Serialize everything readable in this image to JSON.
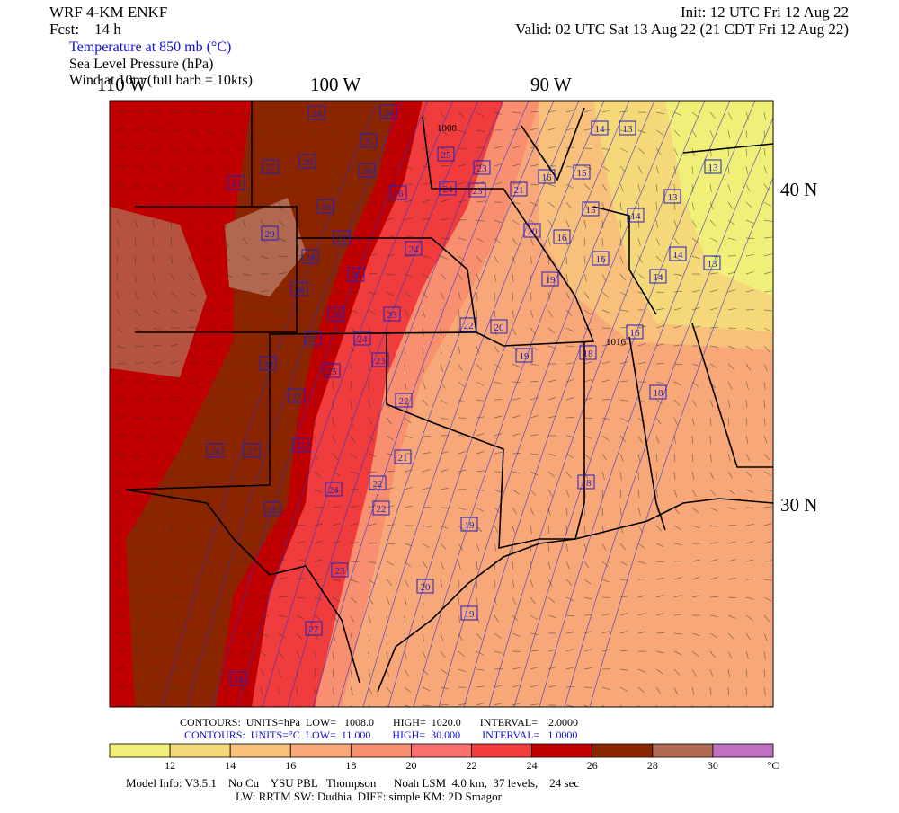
{
  "header": {
    "model": "WRF 4-KM ENKF",
    "forecast": "Fcst:    14 h",
    "init": "Init: 12 UTC Fri 12 Aug 22",
    "valid": "Valid: 02 UTC Sat 13 Aug 22 (21 CDT Fri 12 Aug 22)",
    "fields": [
      "Temperature at 850 mb (°C)",
      "Sea Level Pressure (hPa)",
      "Wind at 10m (full barb = 10kts)"
    ]
  },
  "map": {
    "lon_labels": [
      "110 W",
      "100 W",
      "90 W"
    ],
    "lat_labels": [
      "40 N",
      "30 N"
    ],
    "temperature_labels": [
      "24",
      "24",
      "25",
      "26",
      "26",
      "27",
      "27",
      "28",
      "26",
      "29",
      "28",
      "27",
      "26",
      "28",
      "26",
      "27",
      "24",
      "24",
      "23",
      "23",
      "29",
      "25",
      "22",
      "27",
      "28",
      "27",
      "25",
      "21",
      "22",
      "22",
      "26",
      "24",
      "23",
      "22",
      "26",
      "19",
      "20",
      "19",
      "25",
      "23",
      "24",
      "23",
      "21",
      "16",
      "15",
      "15",
      "14",
      "13",
      "13",
      "14",
      "13",
      "20",
      "16",
      "19",
      "16",
      "14",
      "14",
      "13",
      "22",
      "20",
      "19",
      "18",
      "16",
      "18",
      "18"
    ],
    "pressure_labels": [
      "1008",
      "1016"
    ]
  },
  "contours": [
    "CONTOURS:  UNITS=hPa  LOW=   1008.0       HIGH=  1020.0       INTERVAL=    2.0000",
    "CONTOURS:  UNITS=°C  LOW=  11.000        HIGH=  30.000        INTERVAL=   1.0000"
  ],
  "colorbar": {
    "ticks": [
      12,
      14,
      16,
      18,
      20,
      22,
      24,
      26,
      28,
      30
    ],
    "unit": "°C",
    "colors": [
      "#f0f078",
      "#f5d878",
      "#f8c07a",
      "#f8a878",
      "#f89070",
      "#f87070",
      "#f03c3c",
      "#c00000",
      "#8b2500",
      "#b06850",
      "#c070c0"
    ]
  },
  "footer": [
    "Model Info: V3.5.1    No Cu    YSU PBL   Thompson      Noah LSM  4.0 km,  37 levels,    24 sec",
    "LW: RRTM SW: Dudhia  DIFF: simple KM: 2D Smagor"
  ]
}
